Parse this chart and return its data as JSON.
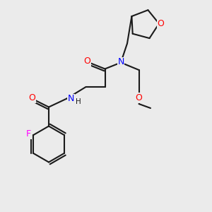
{
  "background_color": "#ebebeb",
  "bond_color": "#1a1a1a",
  "atom_colors": {
    "O": "#ff0000",
    "N": "#0000ff",
    "F": "#ff00ff",
    "C": "#1a1a1a"
  },
  "font_size_atom": 9,
  "font_size_small": 7.5,
  "lw": 1.5
}
